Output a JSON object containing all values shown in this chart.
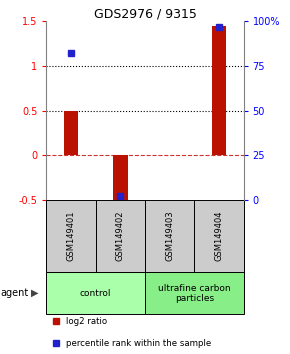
{
  "title": "GDS2976 / 9315",
  "samples": [
    "GSM149401",
    "GSM149402",
    "GSM149403",
    "GSM149404"
  ],
  "log2_ratio": [
    0.5,
    -0.52,
    0.0,
    1.45
  ],
  "percentile_rank_pct": [
    82,
    2,
    null,
    97
  ],
  "ylim_left": [
    -0.5,
    1.5
  ],
  "ylim_right": [
    0,
    100
  ],
  "yticks_left": [
    -0.5,
    0.0,
    0.5,
    1.0,
    1.5
  ],
  "ytick_labels_left": [
    "-0.5",
    "0",
    "0.5",
    "1",
    "1.5"
  ],
  "yticks_right": [
    0,
    25,
    50,
    75,
    100
  ],
  "ytick_labels_right": [
    "0",
    "25",
    "50",
    "75",
    "100%"
  ],
  "hlines_dotted": [
    0.5,
    1.0
  ],
  "hline_dashdot": 0.0,
  "bar_color": "#bb1100",
  "dot_color": "#2222cc",
  "groups": [
    {
      "label": "control",
      "span": [
        0,
        2
      ],
      "color": "#aaffaa"
    },
    {
      "label": "ultrafine carbon\nparticles",
      "span": [
        2,
        4
      ],
      "color": "#88ee88"
    }
  ],
  "agent_label": "agent",
  "legend": [
    {
      "color": "#bb1100",
      "label": "log2 ratio"
    },
    {
      "color": "#2222cc",
      "label": "percentile rank within the sample"
    }
  ],
  "sample_box_color": "#cccccc",
  "title_fontsize": 9,
  "tick_fontsize": 7,
  "label_fontsize": 7,
  "bar_width": 0.3
}
